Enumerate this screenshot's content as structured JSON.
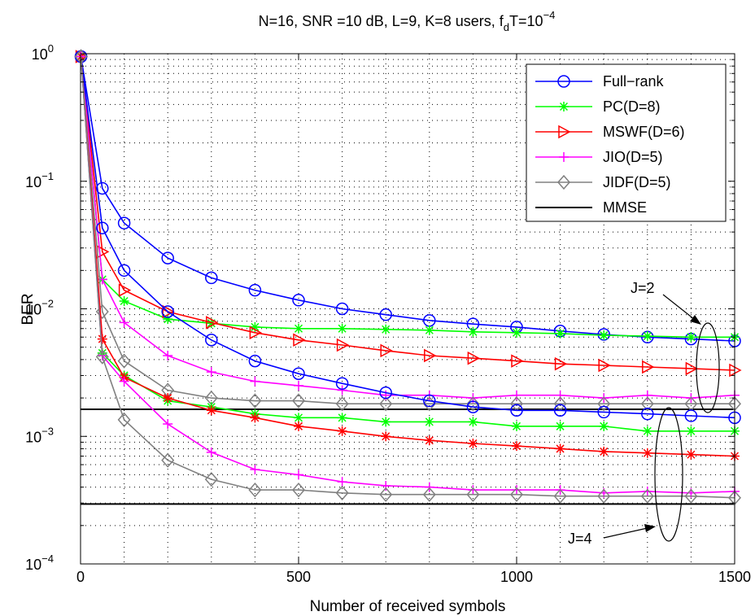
{
  "chart_data": {
    "type": "line",
    "title": {
      "main": "N=16, SNR =10 dB, L=9, K=8 users, f",
      "sub": "d",
      "mid": "T=10",
      "sup": "−4"
    },
    "xlabel": "Number of received symbols",
    "ylabel": "BER",
    "xlim": [
      0,
      1500
    ],
    "ylim": [
      0.0001,
      1
    ],
    "yscale": "log",
    "grid": true,
    "x_ticks": [
      0,
      500,
      1000,
      1500
    ],
    "x_tick_labels": [
      "0",
      "500",
      "1000",
      "1500"
    ],
    "y_ticks": [
      {
        "value": 1,
        "base": "10",
        "exp": "0"
      },
      {
        "value": 0.1,
        "base": "10",
        "exp": "−1"
      },
      {
        "value": 0.01,
        "base": "10",
        "exp": "−2"
      },
      {
        "value": 0.001,
        "base": "10",
        "exp": "−3"
      },
      {
        "value": 0.0001,
        "base": "10",
        "exp": "−4"
      }
    ],
    "legend_position": "top-right",
    "x": [
      1,
      50,
      100,
      200,
      300,
      400,
      500,
      600,
      700,
      800,
      900,
      1000,
      1100,
      1200,
      1300,
      1400,
      1500
    ],
    "series": [
      {
        "name": "Full−rank",
        "group": "J=2",
        "color": "#0000ff",
        "marker": "circle",
        "values": [
          0.95,
          0.088,
          0.047,
          0.025,
          0.0175,
          0.014,
          0.0117,
          0.01,
          0.009,
          0.0081,
          0.0076,
          0.0072,
          0.0067,
          0.0063,
          0.006,
          0.0058,
          0.0056
        ]
      },
      {
        "name": "PC(D=8)",
        "group": "J=2",
        "color": "#00ff00",
        "marker": "star",
        "values": [
          0.95,
          0.017,
          0.0115,
          0.0083,
          0.0077,
          0.0072,
          0.007,
          0.007,
          0.0069,
          0.0068,
          0.0066,
          0.0065,
          0.0064,
          0.0062,
          0.0061,
          0.006,
          0.006
        ]
      },
      {
        "name": "MSWF(D=6)",
        "group": "J=2",
        "color": "#ff0000",
        "marker": "triangle-right",
        "values": [
          0.95,
          0.028,
          0.014,
          0.0095,
          0.0078,
          0.0065,
          0.0057,
          0.0052,
          0.0047,
          0.0043,
          0.0041,
          0.0039,
          0.0037,
          0.0036,
          0.0035,
          0.0034,
          0.0033
        ]
      },
      {
        "name": "JIO(D=5)",
        "group": "J=2",
        "color": "#ff00ff",
        "marker": "plus",
        "values": [
          0.95,
          0.017,
          0.0078,
          0.0043,
          0.0032,
          0.0027,
          0.0025,
          0.0023,
          0.0021,
          0.0021,
          0.002,
          0.0021,
          0.0021,
          0.002,
          0.0021,
          0.002,
          0.0021
        ]
      },
      {
        "name": "JIDF(D=5)",
        "group": "J=2",
        "color": "#808080",
        "marker": "diamond",
        "values": [
          0.95,
          0.0095,
          0.0039,
          0.0023,
          0.002,
          0.0019,
          0.0019,
          0.0018,
          0.0018,
          0.0018,
          0.0018,
          0.0018,
          0.0018,
          0.0018,
          0.0018,
          0.0018,
          0.0018
        ]
      },
      {
        "name": "Full−rank",
        "group": "J=4",
        "color": "#0000ff",
        "marker": "circle",
        "values": [
          0.95,
          0.043,
          0.02,
          0.0095,
          0.0057,
          0.0039,
          0.0031,
          0.0026,
          0.0022,
          0.0019,
          0.0017,
          0.0016,
          0.0016,
          0.00155,
          0.0015,
          0.00145,
          0.0014
        ]
      },
      {
        "name": "PC(D=8)",
        "group": "J=4",
        "color": "#00ff00",
        "marker": "star",
        "values": [
          0.95,
          0.0045,
          0.003,
          0.0019,
          0.0017,
          0.0015,
          0.0014,
          0.0014,
          0.0013,
          0.0013,
          0.0013,
          0.0012,
          0.0012,
          0.0012,
          0.0011,
          0.0011,
          0.0011
        ]
      },
      {
        "name": "MSWF(D=6)",
        "group": "J=4",
        "color": "#ff0000",
        "marker": "star",
        "values": [
          0.95,
          0.0058,
          0.0029,
          0.002,
          0.0016,
          0.0014,
          0.0012,
          0.0011,
          0.001,
          0.00093,
          0.00088,
          0.00084,
          0.0008,
          0.00076,
          0.00074,
          0.00072,
          0.0007
        ]
      },
      {
        "name": "JIO(D=5)",
        "group": "J=4",
        "color": "#ff00ff",
        "marker": "plus",
        "values": [
          0.95,
          0.0043,
          0.0027,
          0.00125,
          0.00075,
          0.00055,
          0.0005,
          0.00044,
          0.00041,
          0.0004,
          0.00038,
          0.00038,
          0.00038,
          0.00036,
          0.00037,
          0.00036,
          0.00037
        ]
      },
      {
        "name": "JIDF(D=5)",
        "group": "J=4",
        "color": "#808080",
        "marker": "diamond",
        "values": [
          0.95,
          0.0042,
          0.00135,
          0.00065,
          0.00046,
          0.00038,
          0.00038,
          0.00036,
          0.00035,
          0.00035,
          0.00035,
          0.00035,
          0.00034,
          0.00034,
          0.00034,
          0.00034,
          0.00033
        ]
      }
    ],
    "mmse": [
      {
        "name": "MMSE",
        "group": "J=2",
        "color": "#000000",
        "value": 0.00163
      },
      {
        "name": "MMSE",
        "group": "J=4",
        "color": "#000000",
        "value": 0.000295
      }
    ],
    "legend": [
      {
        "label": "Full−rank",
        "color": "#0000ff",
        "marker": "circle"
      },
      {
        "label": "PC(D=8)",
        "color": "#00ff00",
        "marker": "star"
      },
      {
        "label": "MSWF(D=6)",
        "color": "#ff0000",
        "marker": "triangle-right"
      },
      {
        "label": "JIO(D=5)",
        "color": "#ff00ff",
        "marker": "plus"
      },
      {
        "label": "JIDF(D=5)",
        "color": "#808080",
        "marker": "diamond"
      },
      {
        "label": "MMSE",
        "color": "#000000",
        "marker": "none"
      }
    ],
    "annotations": [
      {
        "text": "J=2",
        "target": "ellipse around J=2 curves near x=1450"
      },
      {
        "text": "J=4",
        "target": "ellipse around J=4 curves near x=1380"
      }
    ]
  }
}
